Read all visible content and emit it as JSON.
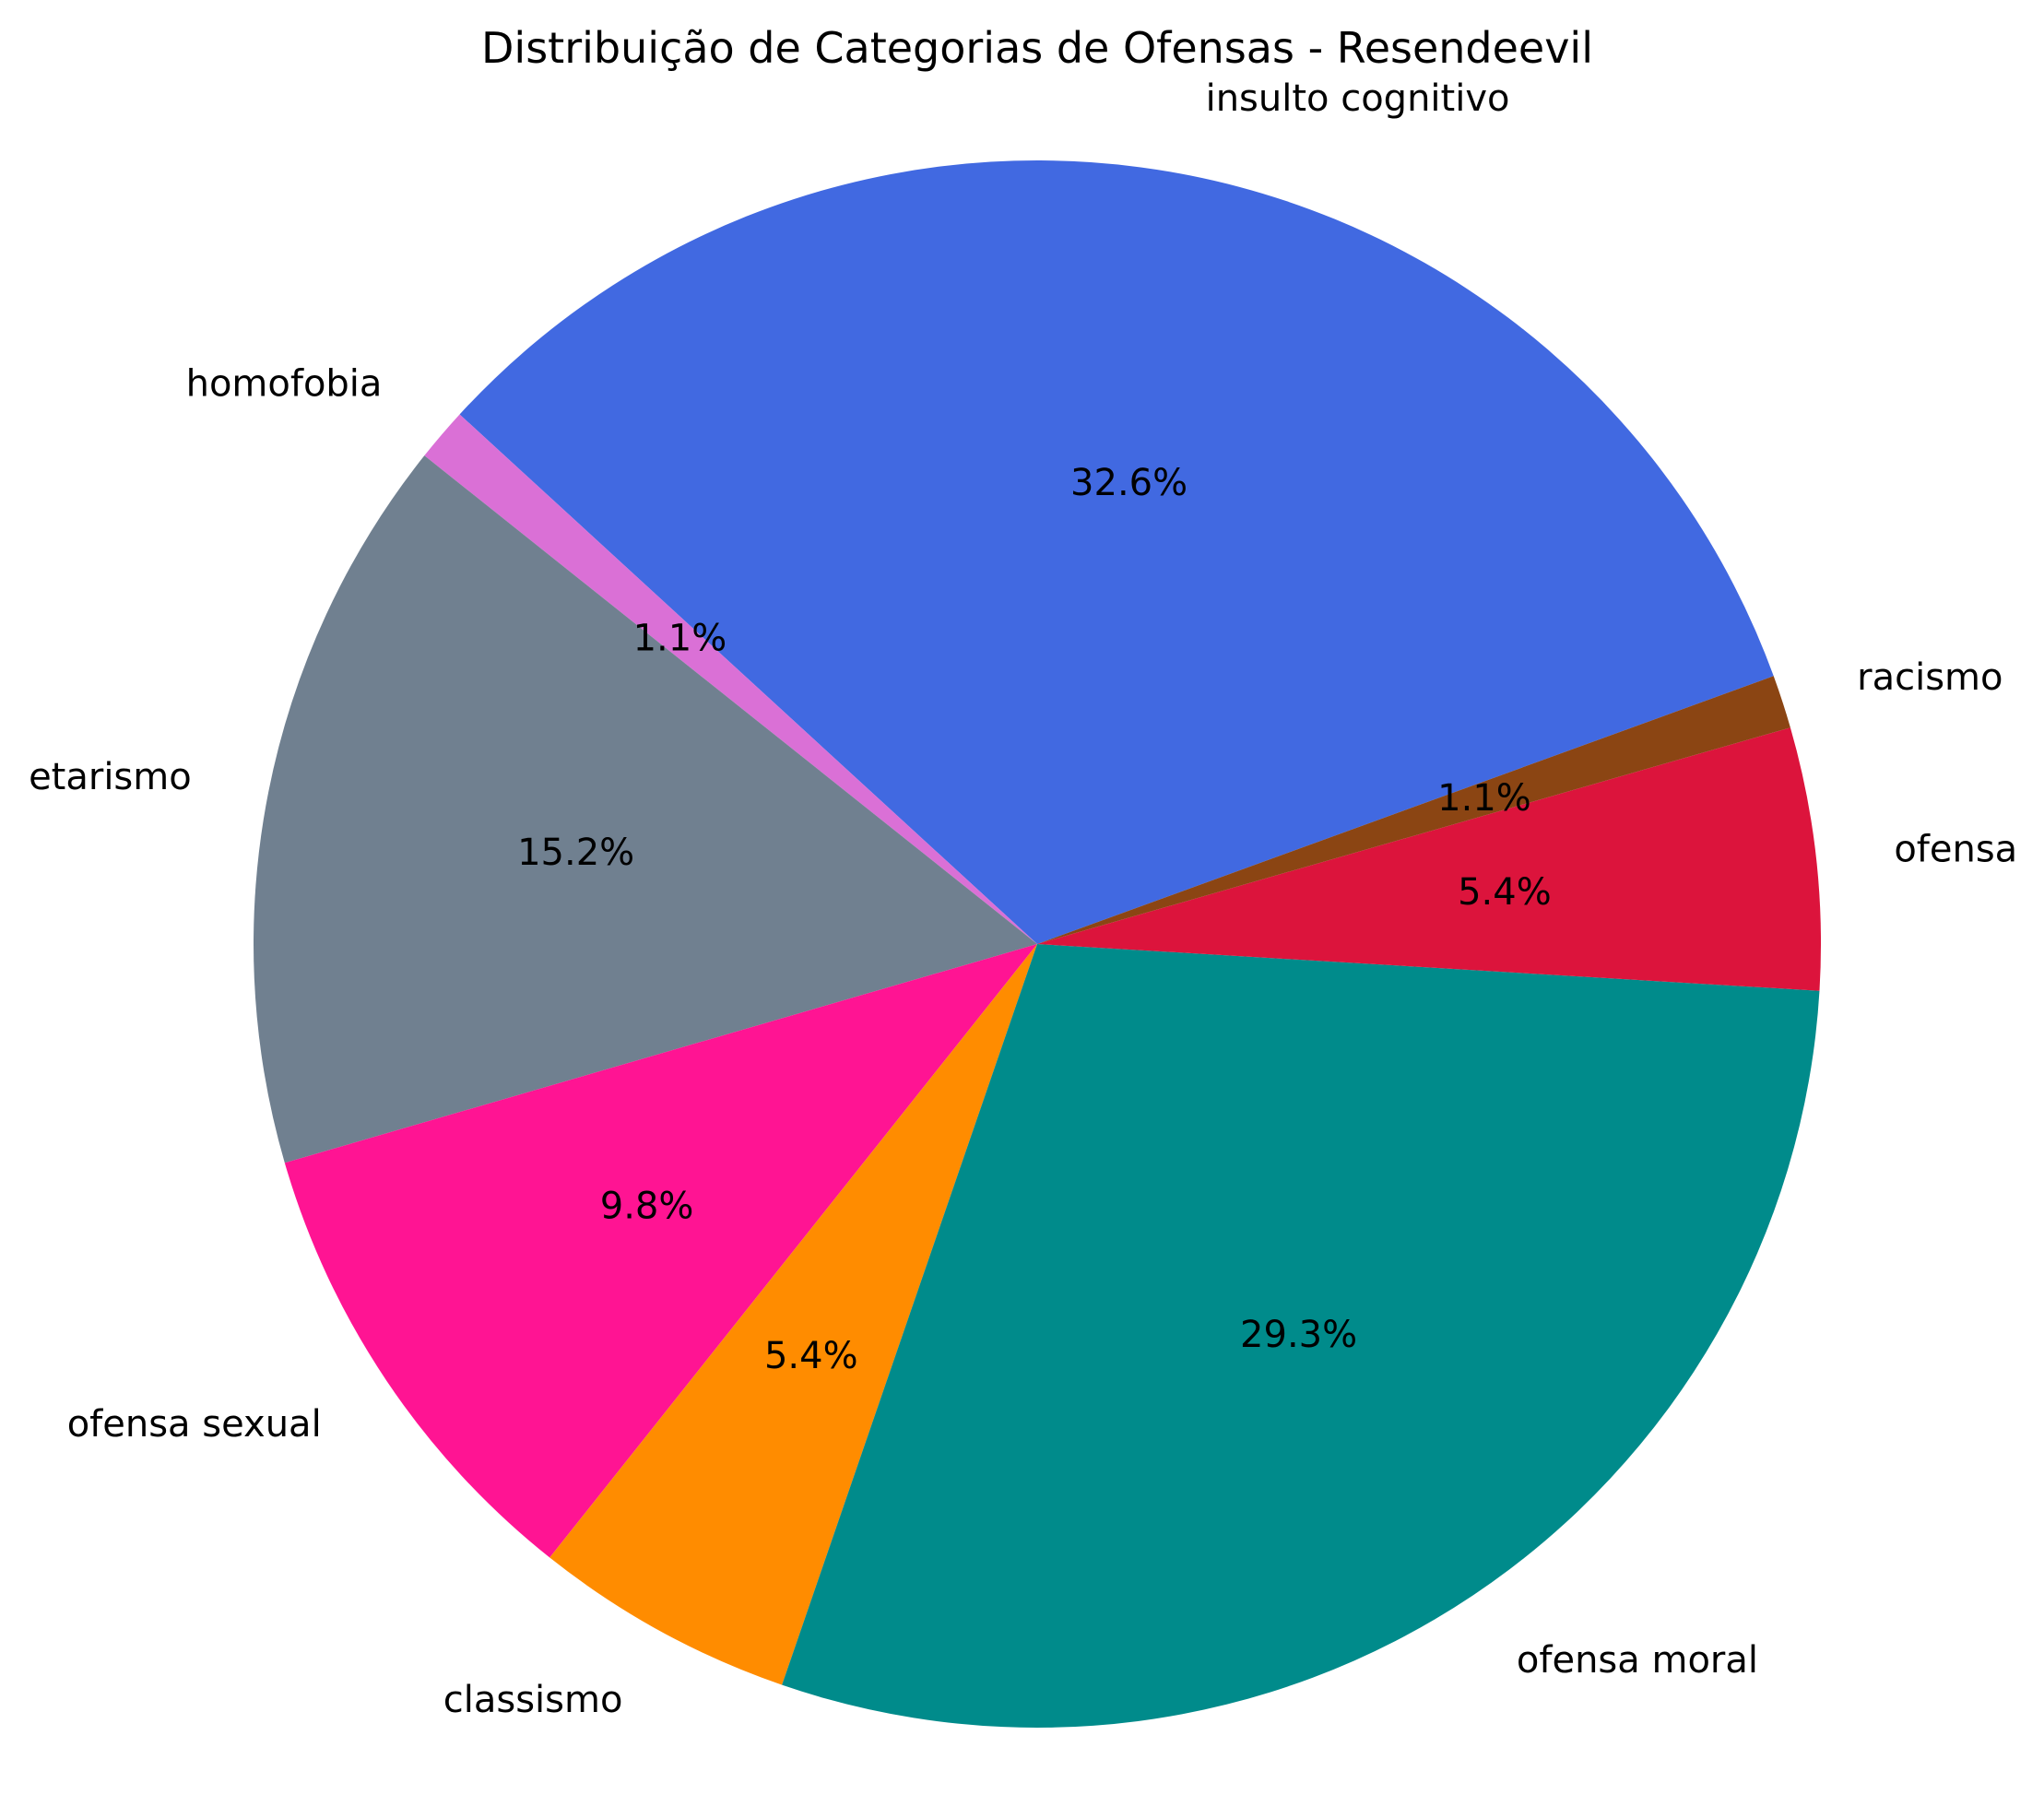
{
  "chart_data": {
    "type": "pie",
    "title": "Distribuição de Categorias de Ofensas - Resendeevil",
    "slices": [
      {
        "label": "insulto cognitivo",
        "value": 32.6,
        "pct_label": "32.6%",
        "color": "#4169E1"
      },
      {
        "label": "homofobia",
        "value": 1.1,
        "pct_label": "1.1%",
        "color": "#DA70D6"
      },
      {
        "label": "etarismo",
        "value": 15.2,
        "pct_label": "15.2%",
        "color": "#708090"
      },
      {
        "label": "ofensa sexual",
        "value": 9.8,
        "pct_label": "9.8%",
        "color": "#FF1493"
      },
      {
        "label": "classismo",
        "value": 5.4,
        "pct_label": "5.4%",
        "color": "#FF8C00"
      },
      {
        "label": "ofensa moral",
        "value": 29.3,
        "pct_label": "29.3%",
        "color": "#008B8B"
      },
      {
        "label": "ofensa",
        "value": 5.4,
        "pct_label": "5.4%",
        "color": "#DC143C"
      },
      {
        "label": "racismo",
        "value": 1.1,
        "pct_label": "1.1%",
        "color": "#8B4513"
      }
    ],
    "start_angle_deg": 20,
    "direction": "counterclockwise",
    "legend": "none"
  }
}
